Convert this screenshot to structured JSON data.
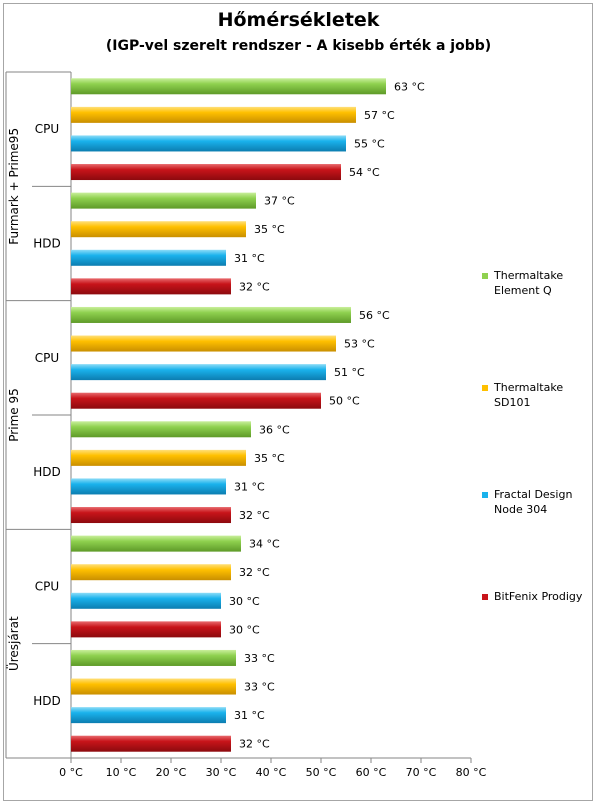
{
  "chart_data": {
    "type": "bar",
    "orientation": "horizontal",
    "title": "Hőmérsékletek",
    "subtitle": "(IGP-vel szerelt rendszer - A kisebb érték a jobb)",
    "xlim": [
      0,
      80
    ],
    "x_ticks": [
      "0 °C",
      "10 °C",
      "20 °C",
      "30 °C",
      "40 °C",
      "50 °C",
      "60 °C",
      "70 °C",
      "80 °C"
    ],
    "x_tick_values": [
      0,
      10,
      20,
      30,
      40,
      50,
      60,
      70,
      80
    ],
    "unit": "°C",
    "grid": false,
    "legend_position": "right",
    "groups": [
      {
        "name": "Furmark + Prime95",
        "subgroups": [
          {
            "name": "CPU",
            "values": [
              63,
              57,
              55,
              54
            ]
          },
          {
            "name": "HDD",
            "values": [
              37,
              35,
              31,
              32
            ]
          }
        ]
      },
      {
        "name": "Prime 95",
        "subgroups": [
          {
            "name": "CPU",
            "values": [
              56,
              53,
              51,
              50
            ]
          },
          {
            "name": "HDD",
            "values": [
              36,
              35,
              31,
              32
            ]
          }
        ]
      },
      {
        "name": "Üresjárat",
        "subgroups": [
          {
            "name": "CPU",
            "values": [
              34,
              32,
              30,
              30
            ]
          },
          {
            "name": "HDD",
            "values": [
              33,
              33,
              31,
              32
            ]
          }
        ]
      }
    ],
    "series": [
      {
        "name": "Thermaltake Element Q",
        "legend_lines": [
          "Thermaltake",
          "Element Q"
        ],
        "color": "#8fd14f",
        "dark": "#5e9a28",
        "light": "#c9ef9c"
      },
      {
        "name": "Thermaltake SD101",
        "legend_lines": [
          "Thermaltake",
          "SD101"
        ],
        "color": "#ffc000",
        "dark": "#c98f00",
        "light": "#ffe07a"
      },
      {
        "name": "Fractal Design Node 304",
        "legend_lines": [
          "Fractal Design",
          "Node 304"
        ],
        "color": "#1ab2ec",
        "dark": "#0c7db0",
        "light": "#8ddcf7"
      },
      {
        "name": "BitFenix Prodigy",
        "legend_lines": [
          "BitFenix Prodigy"
        ],
        "color": "#c8141a",
        "dark": "#8c0a0e",
        "light": "#e86a6e"
      }
    ]
  }
}
